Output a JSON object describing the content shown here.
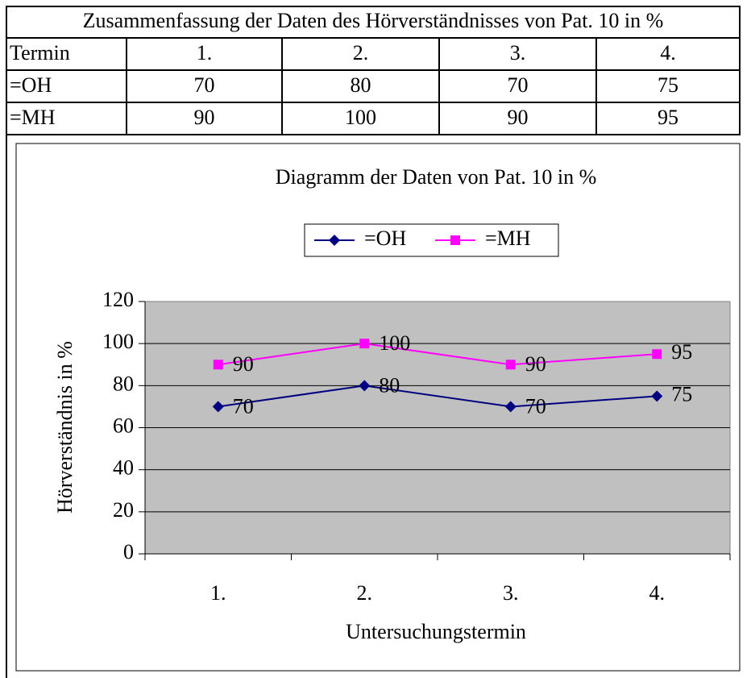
{
  "table": {
    "title": "Zusammenfassung der Daten des Hörverständnisses von Pat. 10 in %",
    "header": [
      "Termin",
      "1.",
      "2.",
      "3.",
      "4."
    ],
    "rows": [
      [
        "=OH",
        "70",
        "80",
        "70",
        "75"
      ],
      [
        "=MH",
        "90",
        "100",
        "90",
        "95"
      ]
    ]
  },
  "chart_data": {
    "type": "line",
    "title": "Diagramm der Daten von Pat. 10 in %",
    "x_label": "Untersuchungstermin",
    "y_label": "Hörverständnis in %",
    "categories": [
      "1.",
      "2.",
      "3.",
      "4."
    ],
    "series": [
      {
        "name": "=OH",
        "color": "#000080",
        "marker": "diamond",
        "values": [
          70,
          80,
          70,
          75
        ]
      },
      {
        "name": "=MH",
        "color": "#ff00ff",
        "marker": "square",
        "values": [
          90,
          100,
          90,
          95
        ]
      }
    ],
    "ylim": [
      0,
      120
    ],
    "yticks": [
      0,
      20,
      40,
      60,
      80,
      100,
      120
    ],
    "grid": true,
    "plot_background": "#c0c0c0",
    "legend": "top"
  }
}
